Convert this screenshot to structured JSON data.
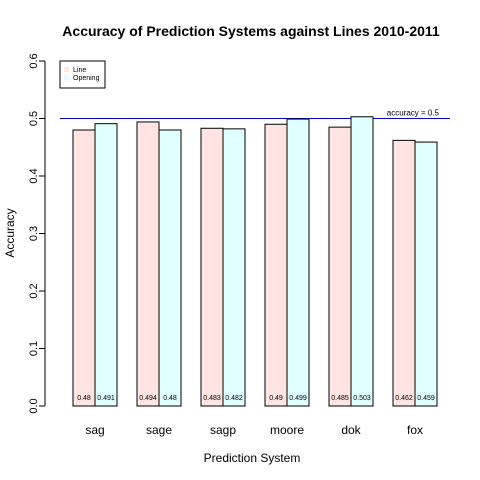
{
  "chart_data": {
    "type": "bar",
    "title": "Accuracy of Prediction Systems against Lines 2010-2011",
    "xlabel": "Prediction System",
    "ylabel": "Accuracy",
    "ylim": [
      0,
      0.6
    ],
    "yticks": [
      "0.0",
      "0.1",
      "0.2",
      "0.3",
      "0.4",
      "0.5",
      "0.6"
    ],
    "categories": [
      "sag",
      "sage",
      "sagp",
      "moore",
      "dok",
      "fox"
    ],
    "series": [
      {
        "name": "Line",
        "color": "#ffe4e1",
        "values": [
          0.48,
          0.494,
          0.483,
          0.49,
          0.485,
          0.462
        ],
        "labels": [
          "0.48",
          "0.494",
          "0.483",
          "0.49",
          "0.485",
          "0.462"
        ]
      },
      {
        "name": "Opening",
        "color": "#e0ffff",
        "values": [
          0.491,
          0.48,
          0.482,
          0.499,
          0.503,
          0.459
        ],
        "labels": [
          "0.491",
          "0.48",
          "0.482",
          "0.499",
          "0.503",
          "0.459"
        ]
      }
    ],
    "reference_line": {
      "value": 0.5,
      "label": "accuracy = 0.5",
      "color": "#0000cc"
    },
    "legend_position": "top-left",
    "grid": false
  }
}
